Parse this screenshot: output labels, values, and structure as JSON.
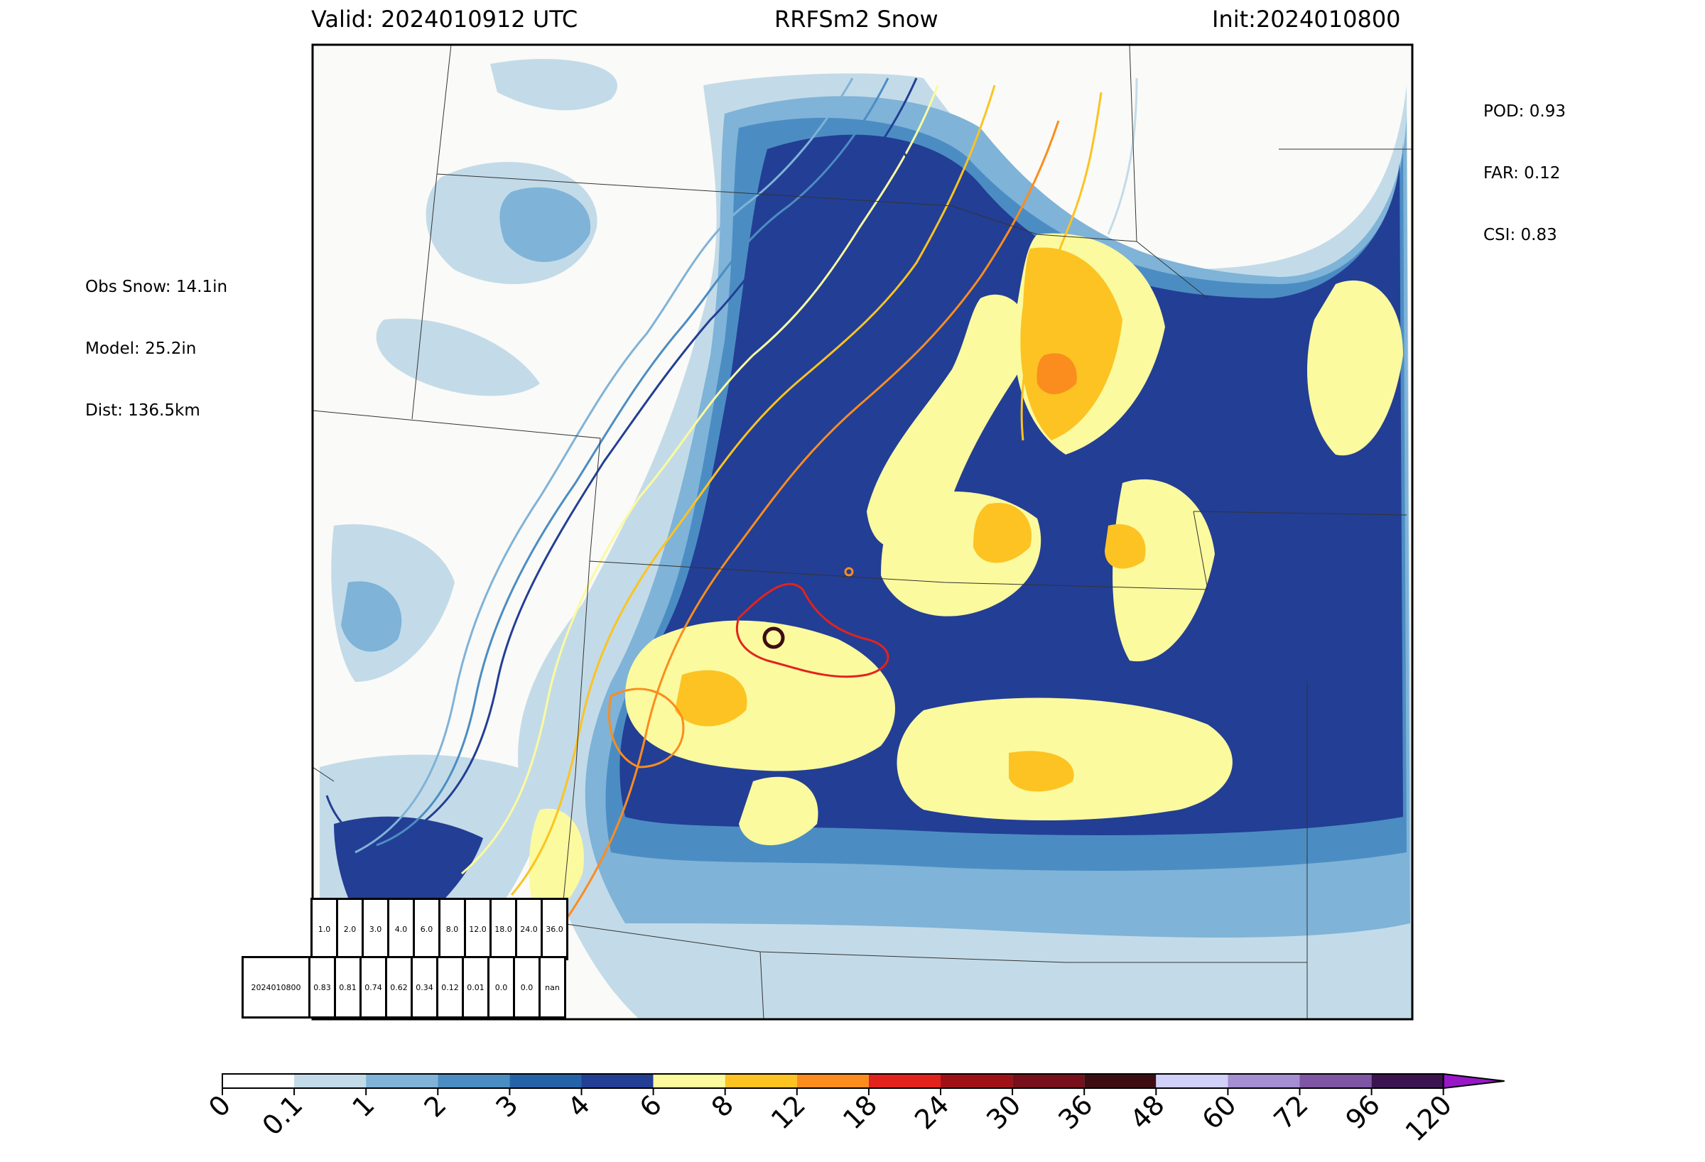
{
  "header": {
    "valid": "Valid: 2024010912 UTC",
    "title": "RRFSm2 Snow",
    "init": "Init:2024010800"
  },
  "obs_stats": {
    "obs_snow": "Obs Snow: 14.1in",
    "model": "Model: 25.2in",
    "dist": "Dist: 136.5km"
  },
  "scores": {
    "pod": "POD: 0.93",
    "far": "FAR: 0.12",
    "csi": "CSI: 0.83"
  },
  "threshold_table": {
    "thresholds": [
      "1.0",
      "2.0",
      "3.0",
      "4.0",
      "6.0",
      "8.0",
      "12.0",
      "18.0",
      "24.0",
      "36.0"
    ],
    "row_label": "2024010800",
    "csi_values": [
      "0.83",
      "0.81",
      "0.74",
      "0.62",
      "0.34",
      "0.12",
      "0.01",
      "0.0",
      "0.0",
      "nan"
    ]
  },
  "colorbar": {
    "ticks": [
      "0",
      "0.1",
      "1",
      "2",
      "3",
      "4",
      "6",
      "8",
      "12",
      "18",
      "24",
      "30",
      "36",
      "48",
      "60",
      "72",
      "96",
      "120"
    ],
    "colors": [
      "#ffffff",
      "#c3dbe8",
      "#7fb3d8",
      "#4b8dc3",
      "#2563a8",
      "#233e95",
      "#fbfa9e",
      "#fcc322",
      "#fb8d1e",
      "#e2231d",
      "#a01117",
      "#77101a",
      "#3d0d12",
      "#d0d0f8",
      "#a58ed2",
      "#7e56a4",
      "#3b1450",
      "#9a17c9"
    ]
  },
  "palette": {
    "land": "#fafaf8",
    "snow_light": "#c3dbe8",
    "snow_1": "#7fb3d8",
    "snow_2": "#4b8dc3",
    "snow_4": "#233e95",
    "snow_6": "#fbfa9e",
    "snow_8": "#fcc322",
    "snow_12": "#fb8d1e"
  }
}
